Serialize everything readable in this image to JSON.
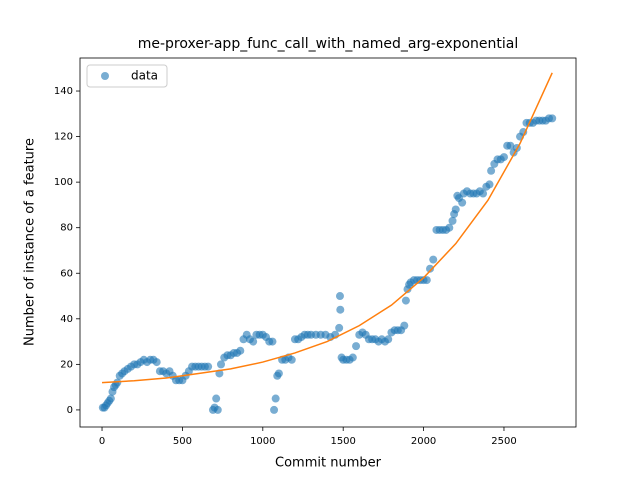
{
  "chart_data": {
    "type": "scatter",
    "title": "me-proxer-app_func_call_with_named_arg-exponential",
    "xlabel": "Commit number",
    "ylabel": "Number of instance of a feature",
    "legend": "upper left",
    "xlim": [
      -137,
      2948
    ],
    "ylim": [
      -7.5,
      154.5
    ],
    "xticks": [
      0,
      500,
      1000,
      1500,
      2000,
      2500
    ],
    "yticks": [
      0,
      20,
      40,
      60,
      80,
      100,
      120,
      140
    ],
    "series": [
      {
        "name": "data",
        "type": "scatter",
        "color": "#1f77b4",
        "x": [
          5,
          15,
          25,
          35,
          45,
          55,
          65,
          75,
          85,
          95,
          110,
          125,
          140,
          160,
          180,
          200,
          220,
          240,
          260,
          280,
          300,
          320,
          340,
          360,
          380,
          400,
          420,
          440,
          460,
          480,
          500,
          520,
          540,
          560,
          580,
          600,
          620,
          640,
          660,
          690,
          700,
          710,
          720,
          730,
          740,
          760,
          780,
          800,
          820,
          840,
          860,
          880,
          900,
          920,
          940,
          960,
          980,
          1000,
          1020,
          1040,
          1060,
          1070,
          1080,
          1090,
          1100,
          1120,
          1140,
          1160,
          1180,
          1200,
          1220,
          1240,
          1260,
          1280,
          1300,
          1330,
          1360,
          1390,
          1420,
          1450,
          1475,
          1480,
          1482,
          1490,
          1500,
          1520,
          1540,
          1560,
          1580,
          1600,
          1620,
          1640,
          1660,
          1680,
          1700,
          1720,
          1740,
          1760,
          1780,
          1800,
          1820,
          1840,
          1860,
          1880,
          1890,
          1900,
          1910,
          1920,
          1940,
          1960,
          1980,
          2000,
          2020,
          2040,
          2060,
          2080,
          2100,
          2120,
          2140,
          2160,
          2180,
          2190,
          2200,
          2210,
          2220,
          2240,
          2250,
          2270,
          2290,
          2310,
          2330,
          2350,
          2370,
          2390,
          2410,
          2420,
          2440,
          2460,
          2480,
          2500,
          2520,
          2540,
          2560,
          2580,
          2600,
          2620,
          2640,
          2660,
          2680,
          2700,
          2720,
          2740,
          2760,
          2780,
          2800
        ],
        "values": [
          1,
          1,
          2,
          3,
          4,
          5,
          8,
          10,
          11,
          12,
          15,
          16,
          17,
          18,
          19,
          20,
          20,
          21,
          22,
          21,
          22,
          22,
          21,
          17,
          17,
          16,
          17,
          15,
          13,
          13,
          13,
          15,
          17,
          19,
          19,
          19,
          19,
          19,
          19,
          0,
          1,
          5,
          0,
          16,
          20,
          23,
          24,
          24,
          25,
          25,
          26,
          31,
          33,
          31,
          30,
          33,
          33,
          33,
          32,
          30,
          30,
          0,
          5,
          15,
          16,
          22,
          22,
          23,
          22,
          31,
          31,
          32,
          33,
          33,
          33,
          33,
          33,
          33,
          32,
          33,
          36,
          50,
          44,
          23,
          22,
          22,
          22,
          23,
          28,
          33,
          34,
          33,
          31,
          31,
          31,
          30,
          31,
          30,
          31,
          34,
          35,
          35,
          35,
          37,
          48,
          53,
          55,
          56,
          57,
          57,
          57,
          57,
          57,
          62,
          66,
          79,
          79,
          79,
          79,
          80,
          83,
          86,
          88,
          94,
          93,
          91,
          95,
          96,
          95,
          95,
          95,
          96,
          95,
          98,
          99,
          105,
          108,
          110,
          110,
          111,
          116,
          116,
          113,
          115,
          120,
          122,
          126,
          126,
          126,
          127,
          127,
          127,
          127,
          128,
          128
        ]
      },
      {
        "type": "line",
        "color": "#ff7f0e",
        "x": [
          0,
          200,
          400,
          600,
          800,
          1000,
          1200,
          1400,
          1600,
          1800,
          2000,
          2200,
          2400,
          2600,
          2800
        ],
        "values": [
          12,
          12.8,
          14,
          16,
          18,
          21,
          25,
          30,
          37,
          46,
          58,
          73,
          92,
          117,
          148
        ]
      }
    ]
  }
}
